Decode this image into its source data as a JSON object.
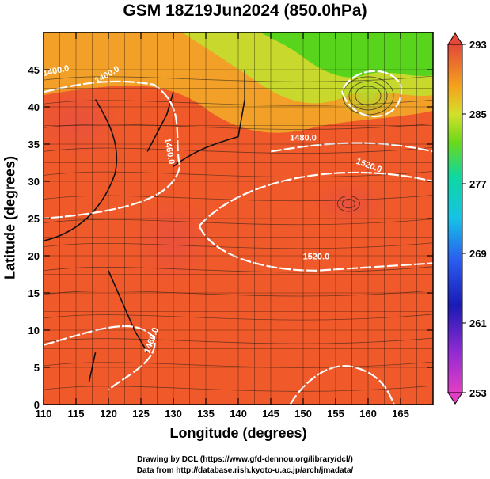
{
  "chart_data": {
    "type": "heatmap",
    "title": "GSM 18Z19Jun2024 (850.0hPa)",
    "xlabel": "Longitude (degrees)",
    "ylabel": "Latitude  (degrees)",
    "xlim": [
      110,
      170
    ],
    "ylim": [
      0,
      50
    ],
    "x_ticks": [
      110,
      115,
      120,
      125,
      130,
      135,
      140,
      145,
      150,
      155,
      160,
      165
    ],
    "y_ticks": [
      0,
      5,
      10,
      15,
      20,
      25,
      30,
      35,
      40,
      45
    ],
    "grid": true,
    "colorbar": {
      "min": 253,
      "max": 293,
      "ticks": [
        293,
        285,
        277,
        269,
        261,
        253
      ],
      "position": "right"
    },
    "contour_labels": [
      "1520.0",
      "1520.0",
      "1400.0",
      "1400.0",
      "1480.0",
      "1460.0",
      "1460.0"
    ]
  },
  "credits": {
    "line1": "Drawing by DCL (https://www.gfd-dennou.org/library/dcl/)",
    "line2": "Data from http://database.rish.kyoto-u.ac.jp/arch/jmadata/"
  }
}
